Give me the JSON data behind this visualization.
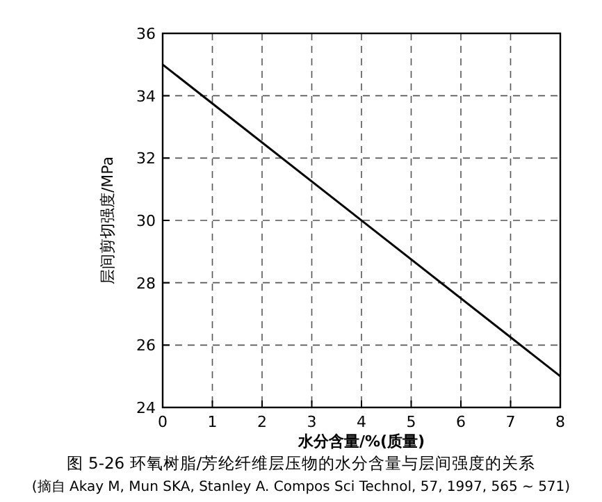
{
  "chart_data": {
    "type": "line",
    "title": "图 5-26 环氧树脂/芳纶纤维层压物的水分含量与层间强度的关系",
    "xlabel": "水分含量/%(质量)",
    "ylabel": "层间剪切强度/MPa",
    "annotations": [
      "(摘自 Akay M, Mun SKA, Stanley A. Compos Sci Technol, 57, 1997, 565 ~ 571)"
    ],
    "x": [
      0,
      8
    ],
    "series": [
      {
        "color": "#000000",
        "values": [
          35,
          25
        ]
      }
    ],
    "xlim": [
      0,
      8
    ],
    "xticks": [
      0,
      1,
      2,
      3,
      4,
      5,
      6,
      7,
      8
    ],
    "ylim": [
      24,
      36
    ],
    "yticks": [
      24,
      26,
      28,
      30,
      32,
      34,
      36
    ],
    "grid": true,
    "line_style": "solid",
    "marker": "none"
  }
}
